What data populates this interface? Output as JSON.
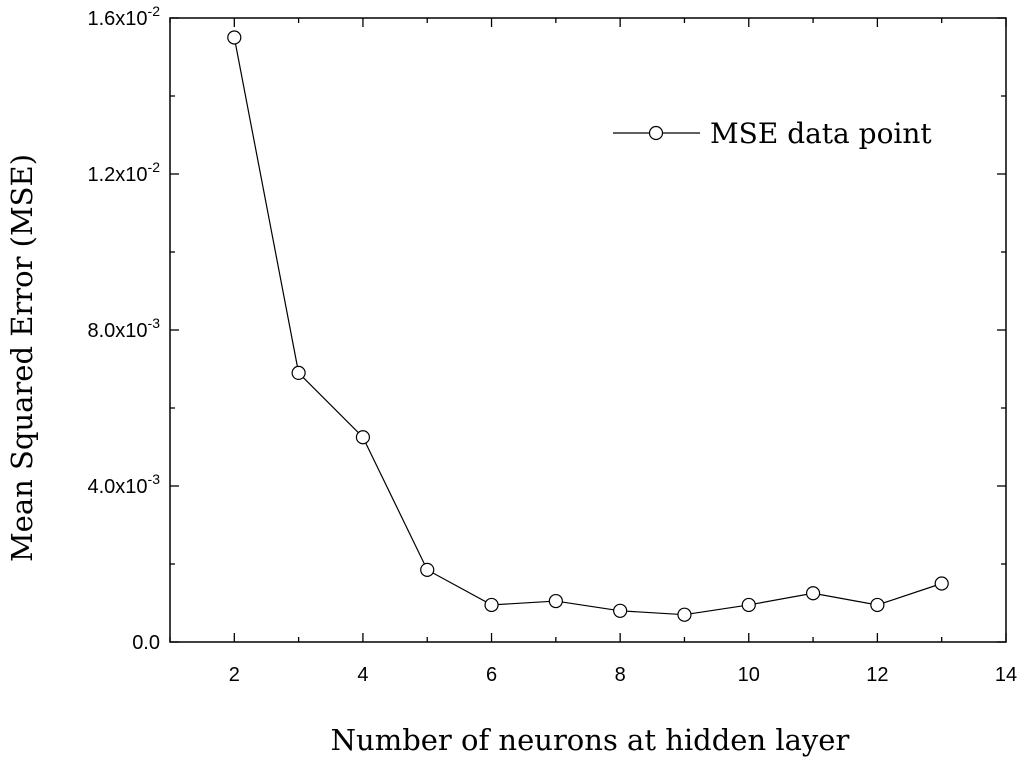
{
  "chart_data": {
    "type": "line",
    "xlabel": "Number of neurons at hidden layer",
    "ylabel": "Mean Squared Error (MSE)",
    "xlim": [
      1,
      14
    ],
    "ylim": [
      0,
      0.016
    ],
    "x_ticks": [
      2,
      4,
      6,
      8,
      10,
      12,
      14
    ],
    "y_ticks": [
      {
        "value": 0.0,
        "mantissa": "0.0",
        "exponent": ""
      },
      {
        "value": 0.004,
        "mantissa": "4.0x10",
        "exponent": "-3"
      },
      {
        "value": 0.008,
        "mantissa": "8.0x10",
        "exponent": "-3"
      },
      {
        "value": 0.012,
        "mantissa": "1.2x10",
        "exponent": "-2"
      },
      {
        "value": 0.016,
        "mantissa": "1.6x10",
        "exponent": "-2"
      }
    ],
    "grid": false,
    "legend_position": "top-right",
    "series": [
      {
        "name": "MSE data point",
        "marker": "open-circle",
        "color": "#000000",
        "x": [
          2,
          3,
          4,
          5,
          6,
          7,
          8,
          9,
          10,
          11,
          12,
          13
        ],
        "y": [
          0.0155,
          0.0069,
          0.00525,
          0.00185,
          0.00095,
          0.00105,
          0.0008,
          0.0007,
          0.00095,
          0.00125,
          0.00095,
          0.0015
        ]
      }
    ]
  }
}
